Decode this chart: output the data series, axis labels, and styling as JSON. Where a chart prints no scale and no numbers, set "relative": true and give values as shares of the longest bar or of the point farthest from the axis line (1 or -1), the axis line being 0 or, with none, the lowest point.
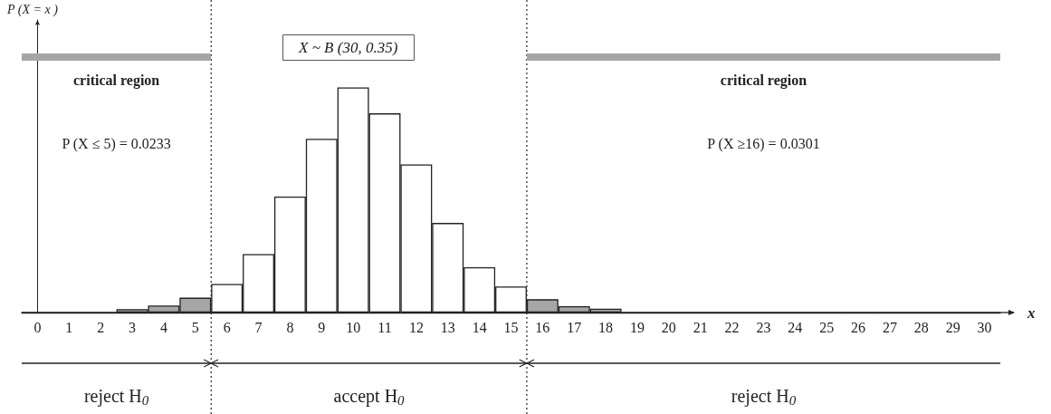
{
  "chart_data": {
    "type": "bar",
    "title": "X ~ B (30, 0.35)",
    "xlabel": "x",
    "relative": true,
    "x": [
      0,
      1,
      2,
      3,
      4,
      5,
      6,
      7,
      8,
      9,
      10,
      11,
      12,
      13,
      14,
      15,
      16,
      17,
      18,
      19,
      20,
      21,
      22,
      23,
      24,
      25,
      26,
      27,
      28,
      29,
      30
    ],
    "values": [
      0,
      0,
      0,
      0.015,
      0.031,
      0.066,
      0.127,
      0.26,
      0.515,
      0.772,
      1,
      0.885,
      0.658,
      0.398,
      0.201,
      0.116,
      0.059,
      0.028,
      0.017,
      0,
      0,
      0,
      0,
      0,
      0,
      0,
      0,
      0,
      0,
      0,
      0
    ],
    "colors": [
      "#ffffff",
      "#ffffff",
      "#ffffff",
      "#a6a6a6",
      "#a6a6a6",
      "#a6a6a6",
      "#ffffff",
      "#ffffff",
      "#ffffff",
      "#ffffff",
      "#ffffff",
      "#ffffff",
      "#ffffff",
      "#ffffff",
      "#ffffff",
      "#ffffff",
      "#a6a6a6",
      "#a6a6a6",
      "#a6a6a6",
      "#ffffff",
      "#ffffff",
      "#ffffff",
      "#ffffff",
      "#ffffff",
      "#ffffff",
      "#ffffff",
      "#ffffff",
      "#ffffff",
      "#ffffff",
      "#ffffff",
      "#ffffff"
    ],
    "xlim": [
      -0.5,
      30.5
    ],
    "xticks": [
      0,
      1,
      2,
      3,
      4,
      5,
      6,
      7,
      8,
      9,
      10,
      11,
      12,
      13,
      14,
      15,
      16,
      17,
      18,
      19,
      20,
      21,
      22,
      23,
      24,
      25,
      26,
      27,
      28,
      29,
      30
    ],
    "ref_lines": [
      {
        "axis": "x",
        "value": 5.5,
        "line_style": "dotted"
      },
      {
        "axis": "x",
        "value": 15.5,
        "line_style": "dotted"
      }
    ],
    "annotations": [
      "P (X = x )",
      "critical region",
      "critical region",
      "P (X ≤ 5) = 0.0233",
      "P (X ≥16) = 0.0301",
      "reject H$_{0}$",
      "accept H$_{0}$",
      "reject H$_{0}$"
    ]
  }
}
